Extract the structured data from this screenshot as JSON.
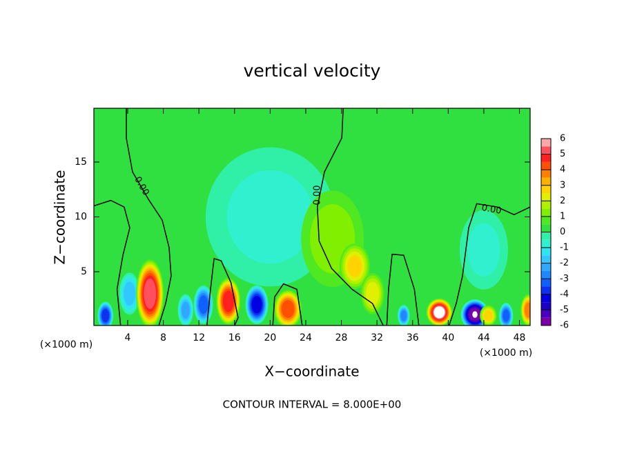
{
  "chart_data": {
    "type": "contour",
    "title": "vertical velocity",
    "x_label": "X−coordinate",
    "y_label": "Z−coordinate",
    "x_unit": "(×1000 m)",
    "footer": "CONTOUR INTERVAL = 8.000E+00",
    "xlim": [
      0.2,
      49.2
    ],
    "ylim": [
      0.1,
      19.9
    ],
    "xticks": [
      4,
      8,
      12,
      16,
      20,
      24,
      28,
      32,
      36,
      40,
      44,
      48
    ],
    "yticks": [
      5,
      10,
      15
    ],
    "background_value": 0.2,
    "features": [
      {
        "x": 20,
        "z": 10,
        "rx": 8,
        "rz": 7,
        "value": -0.8
      },
      {
        "x": 44,
        "z": 7,
        "rx": 3,
        "rz": 4,
        "value": -0.8
      },
      {
        "x": 27,
        "z": 8,
        "rx": 4,
        "rz": 5,
        "value": 1.4
      },
      {
        "x": 4.2,
        "z": 3,
        "rx": 1.2,
        "rz": 2,
        "value": -2
      },
      {
        "x": 6.5,
        "z": 3,
        "rx": 1.6,
        "rz": 3.2,
        "value": 5.5
      },
      {
        "x": 15.3,
        "z": 2.3,
        "rx": 1.4,
        "rz": 2.2,
        "value": 5
      },
      {
        "x": 22,
        "z": 1.6,
        "rx": 1.6,
        "rz": 1.8,
        "value": 4.5
      },
      {
        "x": 39,
        "z": 1.3,
        "rx": 1.5,
        "rz": 1.3,
        "value": 6
      },
      {
        "x": 43,
        "z": 1.1,
        "rx": 1.6,
        "rz": 1.4,
        "value": -6
      },
      {
        "x": 1.5,
        "z": 1,
        "rx": 0.9,
        "rz": 1.3,
        "value": -4
      },
      {
        "x": 12.5,
        "z": 2,
        "rx": 1.1,
        "rz": 1.8,
        "value": -3.5
      },
      {
        "x": 18.5,
        "z": 2,
        "rx": 1.3,
        "rz": 1.8,
        "value": -4.5
      },
      {
        "x": 29.5,
        "z": 5.5,
        "rx": 1.8,
        "rz": 2.2,
        "value": 2.8
      },
      {
        "x": 31.5,
        "z": 3,
        "rx": 1.4,
        "rz": 2,
        "value": 2.5
      },
      {
        "x": 35,
        "z": 1,
        "rx": 0.7,
        "rz": 1,
        "value": -3
      },
      {
        "x": 46.5,
        "z": 1,
        "rx": 0.8,
        "rz": 1.2,
        "value": -3.5
      },
      {
        "x": 49,
        "z": 1.5,
        "rx": 0.9,
        "rz": 1.5,
        "value": 4
      },
      {
        "x": 10.5,
        "z": 1.5,
        "rx": 0.9,
        "rz": 1.5,
        "value": -2.5
      },
      {
        "x": 44.5,
        "z": 1,
        "rx": 1,
        "rz": 1,
        "value": 3
      }
    ],
    "contour_level": 0,
    "contour_label": "0.00",
    "contour_lines": [
      {
        "x": [
          3.84,
          3.84,
          4.54,
          6.33,
          7.88,
          8.65,
          8.88,
          8.26,
          7.5
        ],
        "z": [
          19.9,
          17.2,
          14.1,
          11.6,
          9.7,
          7.2,
          4.6,
          2.1,
          0.1
        ]
      },
      {
        "x": [
          0.2,
          2.1,
          3.6,
          4.23,
          3.46,
          2.8,
          3.2
        ],
        "z": [
          11.0,
          11.5,
          10.9,
          9.0,
          6.5,
          3.4,
          0.1
        ]
      },
      {
        "x": [
          28.2,
          28.05,
          26.1,
          25.3,
          25.5,
          26.9,
          29.2,
          31.5,
          32.7
        ],
        "z": [
          19.9,
          17.2,
          14.1,
          10.9,
          7.8,
          5.3,
          3.4,
          2.1,
          0.1
        ]
      },
      {
        "x": [
          49.2,
          47.4,
          45.5,
          43.2,
          42.3,
          41.6,
          40.9,
          40.1
        ],
        "z": [
          10.9,
          10.2,
          10.9,
          11.2,
          9.0,
          4.6,
          2.1,
          0.1
        ]
      },
      {
        "x": [
          12.9,
          13.3,
          13.7,
          14.5,
          15.6,
          16.4,
          16.0
        ],
        "z": [
          0.1,
          3.4,
          6.2,
          6.0,
          4.0,
          0.8,
          0.1
        ]
      },
      {
        "x": [
          33.1,
          33.3,
          33.7,
          35.0,
          36.2,
          36.7
        ],
        "z": [
          0.1,
          3.4,
          6.6,
          6.5,
          3.4,
          0.1
        ]
      },
      {
        "x": [
          20.3,
          20.5,
          21.5,
          23.0,
          23.6
        ],
        "z": [
          0.1,
          2.7,
          3.9,
          3.4,
          0.1
        ]
      }
    ],
    "colorbar": {
      "lim": [
        -6,
        6
      ],
      "step": 0.5,
      "ticks": [
        6,
        5,
        4,
        3,
        2,
        1,
        0,
        -1,
        -2,
        -3,
        -4,
        -5,
        -6
      ],
      "colors": [
        "#7a00a8",
        "#4a00c0",
        "#1a00c8",
        "#0000e0",
        "#1030f0",
        "#1060ff",
        "#2088ff",
        "#30a8ff",
        "#30c8ff",
        "#30e4f0",
        "#30f0d0",
        "#30f0a8",
        "#30e040",
        "#50e820",
        "#80f000",
        "#b0f000",
        "#e0f000",
        "#ffd400",
        "#ffb000",
        "#ff8000",
        "#ff5000",
        "#ff2020",
        "#ff5060",
        "#f8a8a8"
      ]
    }
  }
}
